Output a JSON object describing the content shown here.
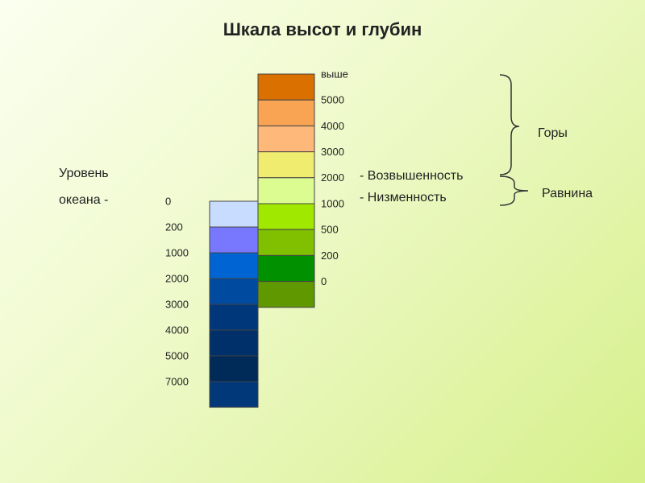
{
  "title": "Шкала высот и глубин",
  "sea_level": {
    "lines": [
      "Уровень",
      "океана -"
    ]
  },
  "height_scale": {
    "labels": [
      "выше",
      "5000",
      "4000",
      "3000",
      "2000",
      "1000",
      "500",
      "200",
      "0"
    ],
    "colors": [
      "#d97000",
      "#f8a452",
      "#fdb87a",
      "#f0ec70",
      "#dcfc92",
      "#a0e800",
      "#80c000",
      "#009000",
      "#609800"
    ]
  },
  "depth_scale": {
    "labels": [
      "0",
      "200",
      "1000",
      "2000",
      "3000",
      "4000",
      "5000",
      "7000"
    ],
    "colors": [
      "#c8dcff",
      "#7878ff",
      "#0064d2",
      "#004aa0",
      "#00377a",
      "#00306a",
      "#002a58",
      "#00387a"
    ]
  },
  "landforms": [
    "- Возвышенность",
    "- Низменность"
  ],
  "groups": [
    "Горы",
    "Равнина"
  ]
}
